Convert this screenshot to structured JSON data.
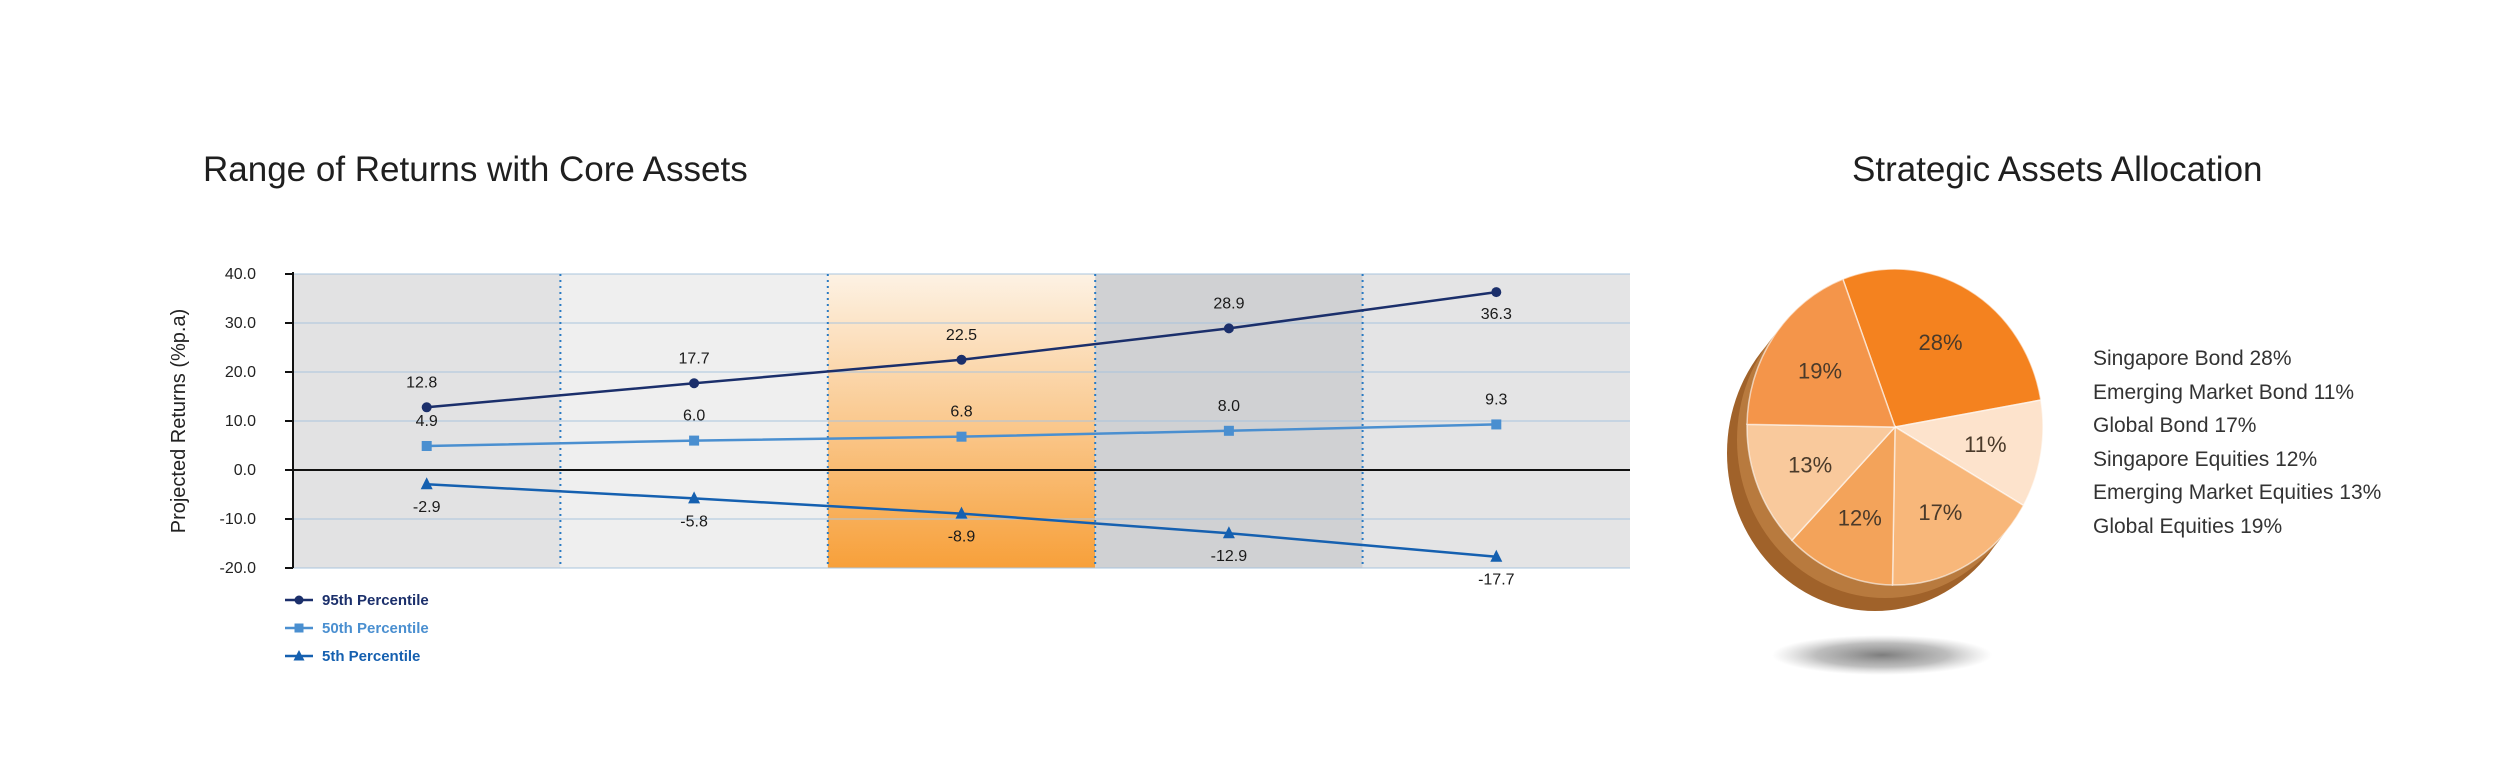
{
  "titles": {
    "line": "Range of Returns with Core Assets",
    "pie": "Strategic Assets Allocation"
  },
  "chart_data": [
    {
      "type": "line",
      "title": "Range of Returns with Core Assets",
      "ylabel": "Projected Returns (%p.a)",
      "ylim": [
        -20,
        40
      ],
      "yticks": [
        "40.0",
        "30.0",
        "20.0",
        "10.0",
        "0.0",
        "-10.0",
        "-20.0"
      ],
      "grid": true,
      "legend_position": "bottom-left",
      "series": [
        {
          "name": "95th Percentile",
          "marker": "circle",
          "color": "#1b2f6b",
          "values": [
            12.8,
            17.7,
            22.5,
            28.9,
            36.3
          ]
        },
        {
          "name": "50th Percentile",
          "marker": "square",
          "color": "#4a8fd0",
          "values": [
            4.9,
            6.0,
            6.8,
            8.0,
            9.3
          ]
        },
        {
          "name": "5th Percentile",
          "marker": "triangle",
          "color": "#1560b0",
          "values": [
            -2.9,
            -5.8,
            -8.9,
            -12.9,
            -17.7
          ]
        }
      ],
      "band_colors": [
        "#e2e2e3",
        "#efefef",
        "#f7a13c",
        "#d0d1d3",
        "#e4e4e5"
      ]
    },
    {
      "type": "pie",
      "title": "Strategic Assets Allocation",
      "slices": [
        {
          "label": "Singapore Bond",
          "value": 28,
          "pct": "28%",
          "legend": "Singapore Bond 28%",
          "color": "#f4821f"
        },
        {
          "label": "Emerging Market Bond",
          "value": 11,
          "pct": "11%",
          "legend": "Emerging Market Bond 11%",
          "color": "#fde3cc"
        },
        {
          "label": "Global Bond",
          "value": 17,
          "pct": "17%",
          "legend": "Global Bond 17%",
          "color": "#f8b77a"
        },
        {
          "label": "Singapore Equities",
          "value": 12,
          "pct": "12%",
          "legend": "Singapore Equities 12%",
          "color": "#f3a35a"
        },
        {
          "label": "Emerging Market Equities",
          "value": 13,
          "pct": "13%",
          "legend": "Emerging Market Equities 13%",
          "color": "#f9c99c"
        },
        {
          "label": "Global Equities",
          "value": 19,
          "pct": "19%",
          "legend": "Global Equities 19%",
          "color": "#f4954a"
        }
      ]
    }
  ]
}
